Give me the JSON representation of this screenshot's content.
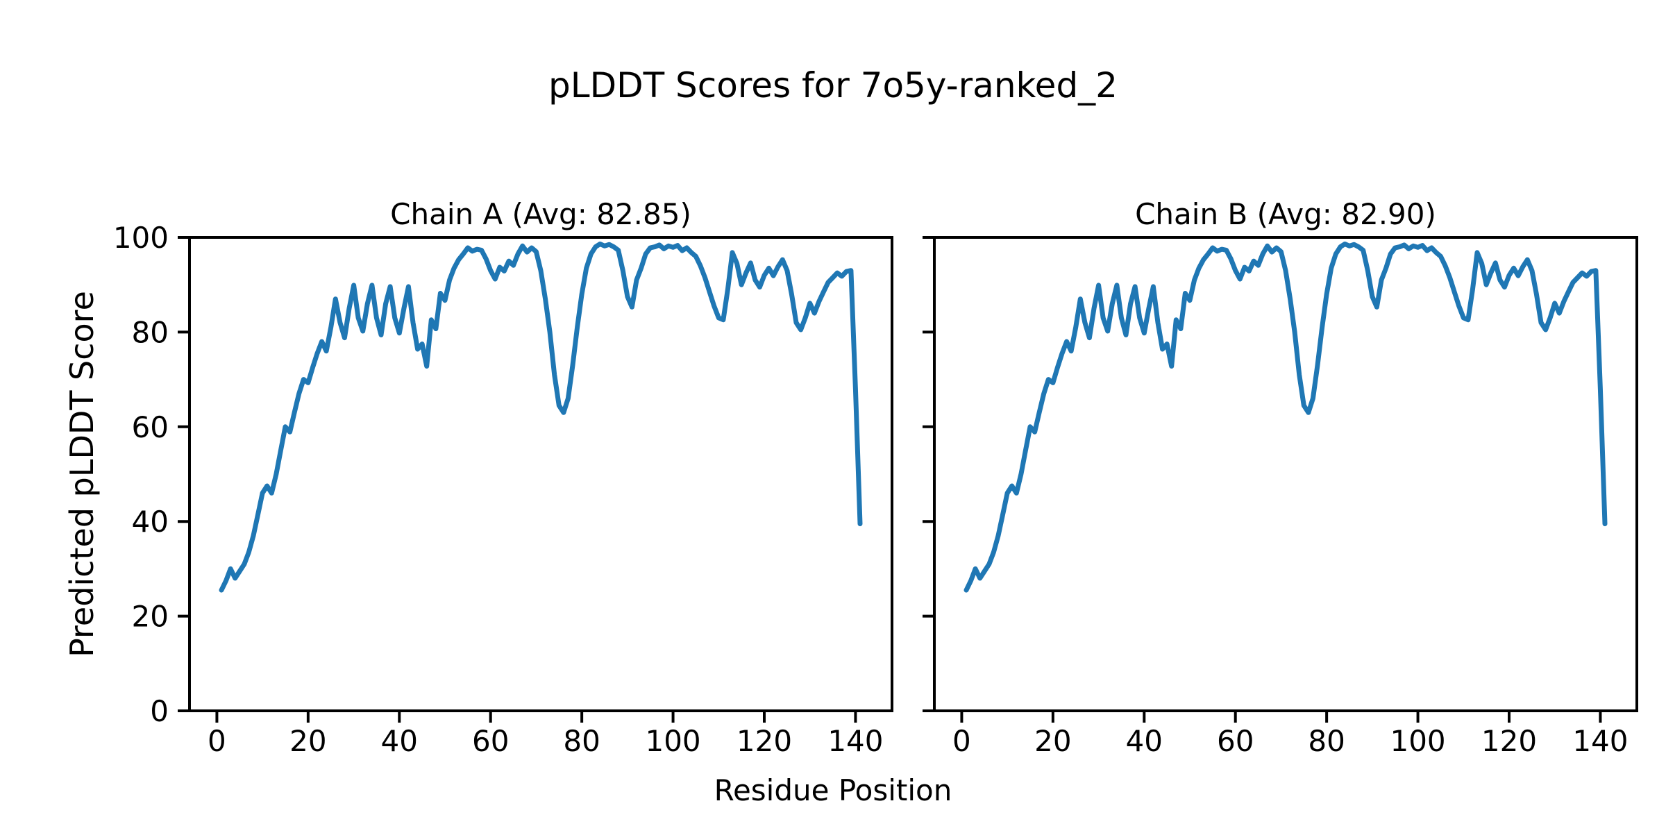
{
  "figure": {
    "suptitle": "pLDDT Scores for 7o5y-ranked_2",
    "xlabel": "Residue Position",
    "ylabel": "Predicted pLDDT Score",
    "background_color": "#ffffff",
    "text_color": "#000000"
  },
  "chart_data": [
    {
      "type": "line",
      "title": "Chain A (Avg: 82.85)",
      "chain": "A",
      "average_plddt": 82.85,
      "xlim": [
        -6,
        148
      ],
      "ylim": [
        0,
        100
      ],
      "xticks": [
        0,
        20,
        40,
        60,
        80,
        100,
        120,
        140
      ],
      "yticks": [
        0,
        20,
        40,
        60,
        80,
        100
      ],
      "grid": false,
      "legend": false,
      "show_ytick_labels": true,
      "line_color": "#1f77b4",
      "series": [
        {
          "name": "pLDDT",
          "x_start": 1,
          "x_step": 1,
          "values": [
            25.5,
            27.5,
            30,
            28,
            29.5,
            31,
            33.5,
            37,
            41.5,
            46,
            47.5,
            46,
            50,
            55,
            60,
            58.9,
            63,
            67,
            70,
            69.3,
            72.5,
            75.5,
            78,
            76,
            81,
            87,
            82,
            78.8,
            85,
            89.9,
            83,
            80.2,
            86,
            89.9,
            83,
            79.4,
            86,
            89.6,
            83,
            79.8,
            85,
            89.6,
            82,
            76.4,
            77.5,
            72.8,
            82.6,
            80.7,
            88.2,
            86.7,
            91,
            93.5,
            95.3,
            96.5,
            97.8,
            97.1,
            97.5,
            97.3,
            95.5,
            93,
            91.2,
            93.7,
            92.9,
            95,
            94.1,
            96.5,
            98.2,
            96.9,
            97.8,
            97,
            93,
            87,
            80,
            71,
            64.5,
            63,
            66,
            73,
            81,
            88,
            93.5,
            96.5,
            98,
            98.6,
            98.2,
            98.5,
            98,
            97.3,
            93,
            87.5,
            85.3,
            91,
            93.5,
            96.5,
            97.8,
            98,
            98.4,
            97.6,
            98.2,
            97.9,
            98.3,
            97.2,
            97.8,
            96.8,
            96,
            94,
            91.5,
            88.5,
            85.5,
            83,
            82.6,
            89,
            96.8,
            94.5,
            90,
            92.5,
            94.6,
            91,
            89.5,
            92,
            93.5,
            91.9,
            93.8,
            95.3,
            93,
            88,
            82,
            80.5,
            83,
            86.1,
            84,
            86.5,
            88.5,
            90.5,
            91.5,
            92.5,
            91.8,
            92.8,
            93,
            68,
            39.5
          ]
        }
      ]
    },
    {
      "type": "line",
      "title": "Chain B (Avg: 82.90)",
      "chain": "B",
      "average_plddt": 82.9,
      "xlim": [
        -6,
        148
      ],
      "ylim": [
        0,
        100
      ],
      "xticks": [
        0,
        20,
        40,
        60,
        80,
        100,
        120,
        140
      ],
      "yticks": [
        0,
        20,
        40,
        60,
        80,
        100
      ],
      "grid": false,
      "legend": false,
      "show_ytick_labels": false,
      "line_color": "#1f77b4",
      "series": [
        {
          "name": "pLDDT",
          "x_start": 1,
          "x_step": 1,
          "values": [
            25.5,
            27.5,
            30,
            28,
            29.5,
            31,
            33.5,
            37,
            41.5,
            46,
            47.5,
            46,
            50,
            55,
            60,
            58.9,
            63,
            67,
            70,
            69.3,
            72.5,
            75.5,
            78,
            76,
            81,
            87,
            82,
            78.8,
            85,
            89.9,
            83,
            80.2,
            86,
            89.9,
            83,
            79.4,
            86,
            89.6,
            83,
            79.8,
            85,
            89.6,
            82,
            76.4,
            77.5,
            72.8,
            82.6,
            80.7,
            88.2,
            86.7,
            91,
            93.5,
            95.3,
            96.5,
            97.8,
            97.1,
            97.5,
            97.3,
            95.5,
            93,
            91.2,
            93.7,
            92.9,
            95,
            94.1,
            96.5,
            98.2,
            96.9,
            97.8,
            97,
            93,
            87,
            80,
            71,
            64.5,
            63,
            66,
            73,
            81,
            88,
            93.5,
            96.5,
            98,
            98.6,
            98.2,
            98.5,
            98,
            97.3,
            93,
            87.5,
            85.3,
            91,
            93.5,
            96.5,
            97.8,
            98,
            98.4,
            97.6,
            98.2,
            97.9,
            98.3,
            97.2,
            97.8,
            96.8,
            96,
            94,
            91.5,
            88.5,
            85.5,
            83,
            82.6,
            89,
            96.8,
            94.5,
            90,
            92.5,
            94.6,
            91,
            89.5,
            92,
            93.5,
            91.9,
            93.8,
            95.3,
            93,
            88,
            82,
            80.5,
            83,
            86.1,
            84,
            86.5,
            88.5,
            90.5,
            91.5,
            92.5,
            91.8,
            92.8,
            93,
            68,
            39.5
          ]
        }
      ]
    }
  ]
}
